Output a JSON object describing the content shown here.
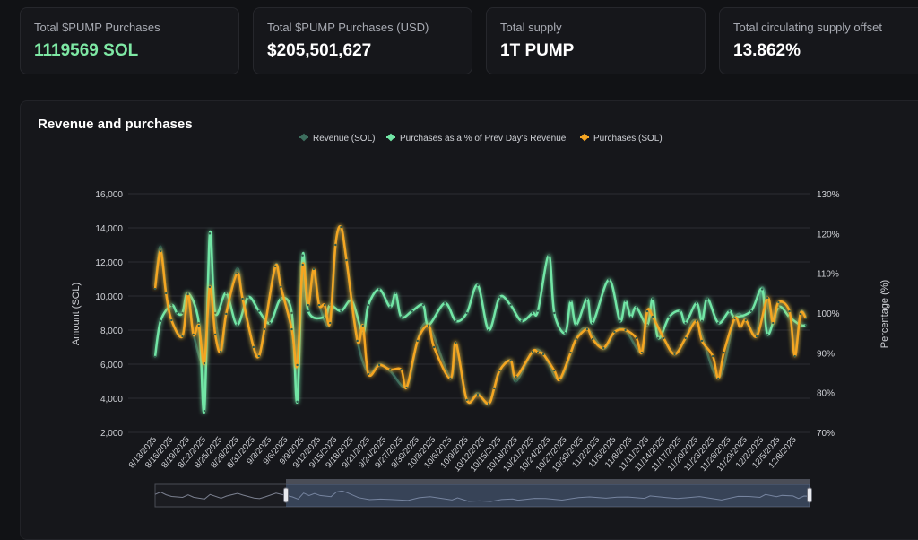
{
  "cards": [
    {
      "label": "Total $PUMP Purchases",
      "value": "1119569 SOL"
    },
    {
      "label": "Total $PUMP Purchases (USD)",
      "value": "$205,501,627"
    },
    {
      "label": "Total supply",
      "value": "1T PUMP"
    },
    {
      "label": "Total circulating supply offset",
      "value": "13.862%"
    }
  ],
  "colors": {
    "revenue": "#3d6e5e",
    "pct": "#72e6a6",
    "purchases": "#f5a623",
    "accent_green": "#7ee8a4"
  },
  "chart_data": {
    "type": "line",
    "title": "Revenue and purchases",
    "legend_position": "top",
    "ylabel": "Amount (SOL)",
    "y2label": "Percentage (%)",
    "ylim": [
      2000,
      16000
    ],
    "y2lim": [
      70,
      130
    ],
    "grid": true,
    "yticks": [
      "2,000",
      "4,000",
      "6,000",
      "8,000",
      "10,000",
      "12,000",
      "14,000",
      "16,000"
    ],
    "y2ticks": [
      "70%",
      "80%",
      "90%",
      "100%",
      "110%",
      "120%",
      "130%"
    ],
    "xticks": [
      "8/13/2025",
      "8/16/2025",
      "8/19/2025",
      "8/22/2025",
      "8/25/2025",
      "8/28/2025",
      "8/31/2025",
      "9/3/2025",
      "9/6/2025",
      "9/9/2025",
      "9/12/2025",
      "9/15/2025",
      "9/18/2025",
      "9/21/2025",
      "9/24/2025",
      "9/27/2025",
      "9/30/2025",
      "10/3/2025",
      "10/6/2025",
      "10/9/2025",
      "10/12/2025",
      "10/15/2025",
      "10/18/2025",
      "10/21/2025",
      "10/24/2025",
      "10/27/2025",
      "10/30/2025",
      "11/2/2025",
      "11/5/2025",
      "11/8/2025",
      "11/11/2025",
      "11/14/2025",
      "11/17/2025",
      "11/20/2025",
      "11/23/2025",
      "11/26/2025",
      "11/29/2025",
      "12/2/2025",
      "12/5/2025",
      "12/8/2025"
    ],
    "data_zoom": {
      "start_pct": 20,
      "end_pct": 100
    },
    "series": [
      {
        "name": "Revenue (SOL)",
        "axis": "left",
        "points": [
          [
            "8/13/2025",
            10600
          ],
          [
            "8/14/2025",
            12900
          ],
          [
            "8/15/2025",
            10200
          ],
          [
            "8/16/2025",
            8600
          ],
          [
            "8/18/2025",
            7700
          ],
          [
            "8/19/2025",
            10200
          ],
          [
            "8/20/2025",
            7800
          ],
          [
            "8/22/2025",
            6100
          ],
          [
            "8/23/2025",
            10500
          ],
          [
            "8/25/2025",
            6800
          ],
          [
            "8/26/2025",
            9000
          ],
          [
            "8/28/2025",
            11600
          ],
          [
            "8/29/2025",
            9900
          ],
          [
            "8/31/2025",
            7000
          ],
          [
            "9/1/2025",
            6500
          ],
          [
            "9/2/2025",
            8100
          ],
          [
            "9/4/2025",
            11800
          ],
          [
            "9/5/2025",
            10500
          ],
          [
            "9/7/2025",
            8100
          ],
          [
            "9/8/2025",
            6000
          ],
          [
            "9/9/2025",
            11900
          ],
          [
            "9/10/2025",
            9500
          ],
          [
            "9/11/2025",
            11500
          ],
          [
            "9/12/2025",
            9500
          ],
          [
            "9/14/2025",
            8400
          ],
          [
            "9/15/2025",
            13000
          ],
          [
            "9/16/2025",
            14000
          ],
          [
            "9/17/2025",
            12100
          ],
          [
            "9/19/2025",
            7400
          ],
          [
            "9/21/2025",
            5500
          ],
          [
            "9/23/2025",
            6000
          ],
          [
            "9/25/2025",
            5600
          ],
          [
            "9/28/2025",
            4700
          ],
          [
            "9/30/2025",
            7400
          ],
          [
            "10/2/2025",
            8300
          ],
          [
            "10/6/2025",
            5200
          ],
          [
            "10/7/2025",
            7200
          ],
          [
            "10/9/2025",
            3900
          ],
          [
            "10/11/2025",
            4300
          ],
          [
            "10/13/2025",
            3700
          ],
          [
            "10/15/2025",
            5600
          ],
          [
            "10/17/2025",
            6200
          ],
          [
            "10/18/2025",
            5000
          ],
          [
            "10/21/2025",
            6700
          ],
          [
            "10/23/2025",
            6600
          ],
          [
            "10/26/2025",
            5100
          ],
          [
            "10/29/2025",
            7500
          ],
          [
            "10/31/2025",
            8100
          ],
          [
            "11/3/2025",
            6900
          ],
          [
            "11/5/2025",
            7900
          ],
          [
            "11/7/2025",
            8000
          ],
          [
            "11/10/2025",
            6700
          ],
          [
            "11/11/2025",
            9100
          ],
          [
            "11/14/2025",
            7500
          ],
          [
            "11/16/2025",
            6600
          ],
          [
            "11/18/2025",
            7500
          ],
          [
            "11/20/2025",
            8500
          ],
          [
            "11/24/2025",
            5200
          ],
          [
            "11/27/2025",
            8700
          ],
          [
            "11/29/2025",
            8600
          ],
          [
            "12/1/2025",
            7700
          ],
          [
            "12/2/2025",
            10500
          ],
          [
            "12/4/2025",
            8400
          ],
          [
            "12/5/2025",
            9600
          ],
          [
            "12/7/2025",
            9100
          ],
          [
            "12/8/2025",
            6600
          ],
          [
            "12/9/2025",
            9000
          ],
          [
            "12/10/2025",
            8800
          ]
        ]
      },
      {
        "name": "Purchases as a % of Prev Day's Revenue",
        "axis": "right",
        "points": [
          [
            "8/13/2025",
            89
          ],
          [
            "8/14/2025",
            98
          ],
          [
            "8/16/2025",
            102
          ],
          [
            "8/17/2025",
            100
          ],
          [
            "8/18/2025",
            100
          ],
          [
            "8/19/2025",
            105
          ],
          [
            "8/21/2025",
            97.5
          ],
          [
            "8/22/2025",
            75.4
          ],
          [
            "8/23/2025",
            120
          ],
          [
            "8/24/2025",
            100
          ],
          [
            "8/26/2025",
            105
          ],
          [
            "8/28/2025",
            97
          ],
          [
            "8/30/2025",
            104
          ],
          [
            "9/1/2025",
            100.5
          ],
          [
            "9/3/2025",
            97.5
          ],
          [
            "9/5/2025",
            103.6
          ],
          [
            "9/7/2025",
            100
          ],
          [
            "9/8/2025",
            77.7
          ],
          [
            "9/9/2025",
            114.5
          ],
          [
            "9/10/2025",
            100.5
          ],
          [
            "9/13/2025",
            99
          ],
          [
            "9/14/2025",
            102
          ],
          [
            "9/16/2025",
            100.5
          ],
          [
            "9/18/2025",
            103
          ],
          [
            "9/20/2025",
            95
          ],
          [
            "9/21/2025",
            102
          ],
          [
            "9/23/2025",
            106
          ],
          [
            "9/25/2025",
            101.5
          ],
          [
            "9/26/2025",
            105
          ],
          [
            "9/27/2025",
            99
          ],
          [
            "9/29/2025",
            100.5
          ],
          [
            "10/1/2025",
            102
          ],
          [
            "10/2/2025",
            97
          ],
          [
            "10/5/2025",
            102.5
          ],
          [
            "10/7/2025",
            98
          ],
          [
            "10/9/2025",
            100
          ],
          [
            "10/11/2025",
            107
          ],
          [
            "10/13/2025",
            95.7
          ],
          [
            "10/15/2025",
            104
          ],
          [
            "10/17/2025",
            102
          ],
          [
            "10/19/2025",
            98
          ],
          [
            "10/21/2025",
            100
          ],
          [
            "10/22/2025",
            100.5
          ],
          [
            "10/24/2025",
            114.5
          ],
          [
            "10/25/2025",
            100
          ],
          [
            "10/27/2025",
            95
          ],
          [
            "10/28/2025",
            103
          ],
          [
            "10/29/2025",
            97
          ],
          [
            "10/31/2025",
            103.6
          ],
          [
            "11/1/2025",
            97.5
          ],
          [
            "11/4/2025",
            108.4
          ],
          [
            "11/6/2025",
            98
          ],
          [
            "11/7/2025",
            103
          ],
          [
            "11/8/2025",
            99
          ],
          [
            "11/9/2025",
            101.5
          ],
          [
            "11/11/2025",
            97
          ],
          [
            "11/12/2025",
            103.6
          ],
          [
            "11/13/2025",
            93.7
          ],
          [
            "11/15/2025",
            99
          ],
          [
            "11/17/2025",
            100.5
          ],
          [
            "11/18/2025",
            97.5
          ],
          [
            "11/20/2025",
            102.5
          ],
          [
            "11/21/2025",
            98
          ],
          [
            "11/22/2025",
            103.6
          ],
          [
            "11/24/2025",
            97.5
          ],
          [
            "11/26/2025",
            100.5
          ],
          [
            "11/27/2025",
            99
          ],
          [
            "11/30/2025",
            100.5
          ],
          [
            "12/2/2025",
            106
          ],
          [
            "12/3/2025",
            94.6
          ],
          [
            "12/5/2025",
            101.5
          ],
          [
            "12/7/2025",
            99
          ],
          [
            "12/9/2025",
            97
          ],
          [
            "12/10/2025",
            97
          ]
        ]
      },
      {
        "name": "Purchases (SOL)",
        "axis": "left",
        "points": [
          [
            "8/13/2025",
            10420
          ],
          [
            "8/14/2025",
            12630
          ],
          [
            "8/15/2025",
            10160
          ],
          [
            "8/16/2025",
            8580
          ],
          [
            "8/18/2025",
            7630
          ],
          [
            "8/19/2025",
            10100
          ],
          [
            "8/20/2025",
            7740
          ],
          [
            "8/21/2025",
            8260
          ],
          [
            "8/22/2025",
            6050
          ],
          [
            "8/23/2025",
            10530
          ],
          [
            "8/24/2025",
            7740
          ],
          [
            "8/25/2025",
            6740
          ],
          [
            "8/26/2025",
            8950
          ],
          [
            "8/28/2025",
            11320
          ],
          [
            "8/29/2025",
            9840
          ],
          [
            "8/31/2025",
            7000
          ],
          [
            "9/1/2025",
            6470
          ],
          [
            "9/2/2025",
            8050
          ],
          [
            "9/4/2025",
            11740
          ],
          [
            "9/5/2025",
            10530
          ],
          [
            "9/7/2025",
            8050
          ],
          [
            "9/8/2025",
            5950
          ],
          [
            "9/9/2025",
            11840
          ],
          [
            "9/10/2025",
            9470
          ],
          [
            "9/11/2025",
            11580
          ],
          [
            "9/12/2025",
            9470
          ],
          [
            "9/13/2025",
            9470
          ],
          [
            "9/14/2025",
            8420
          ],
          [
            "9/15/2025",
            13000
          ],
          [
            "9/16/2025",
            14050
          ],
          [
            "9/17/2025",
            12100
          ],
          [
            "9/19/2025",
            7370
          ],
          [
            "9/20/2025",
            8260
          ],
          [
            "9/21/2025",
            5420
          ],
          [
            "9/23/2025",
            5950
          ],
          [
            "9/25/2025",
            5680
          ],
          [
            "9/27/2025",
            5680
          ],
          [
            "9/28/2025",
            4630
          ],
          [
            "9/30/2025",
            7370
          ],
          [
            "10/2/2025",
            8260
          ],
          [
            "10/3/2025",
            7000
          ],
          [
            "10/6/2025",
            5160
          ],
          [
            "10/7/2025",
            7260
          ],
          [
            "10/9/2025",
            3900
          ],
          [
            "10/11/2025",
            4210
          ],
          [
            "10/13/2025",
            3680
          ],
          [
            "10/14/2025",
            4580
          ],
          [
            "10/15/2025",
            5630
          ],
          [
            "10/17/2025",
            6210
          ],
          [
            "10/18/2025",
            5260
          ],
          [
            "10/21/2025",
            6740
          ],
          [
            "10/22/2025",
            6680
          ],
          [
            "10/23/2025",
            6580
          ],
          [
            "10/25/2025",
            5630
          ],
          [
            "10/26/2025",
            5100
          ],
          [
            "10/28/2025",
            6680
          ],
          [
            "10/29/2025",
            7470
          ],
          [
            "10/31/2025",
            8050
          ],
          [
            "11/1/2025",
            7470
          ],
          [
            "11/3/2025",
            6950
          ],
          [
            "11/5/2025",
            7890
          ],
          [
            "11/7/2025",
            8000
          ],
          [
            "11/9/2025",
            7530
          ],
          [
            "11/10/2025",
            6680
          ],
          [
            "11/11/2025",
            9100
          ],
          [
            "11/12/2025",
            8790
          ],
          [
            "11/14/2025",
            7530
          ],
          [
            "11/16/2025",
            6580
          ],
          [
            "11/18/2025",
            7530
          ],
          [
            "11/20/2025",
            8530
          ],
          [
            "11/21/2025",
            7370
          ],
          [
            "11/23/2025",
            6470
          ],
          [
            "11/24/2025",
            5160
          ],
          [
            "11/25/2025",
            6680
          ],
          [
            "11/27/2025",
            8690
          ],
          [
            "11/28/2025",
            8160
          ],
          [
            "11/29/2025",
            8580
          ],
          [
            "12/1/2025",
            7630
          ],
          [
            "12/3/2025",
            9890
          ],
          [
            "12/4/2025",
            8420
          ],
          [
            "12/5/2025",
            9630
          ],
          [
            "12/7/2025",
            9100
          ],
          [
            "12/8/2025",
            6470
          ],
          [
            "12/9/2025",
            8950
          ],
          [
            "12/10/2025",
            8690
          ]
        ]
      }
    ]
  }
}
